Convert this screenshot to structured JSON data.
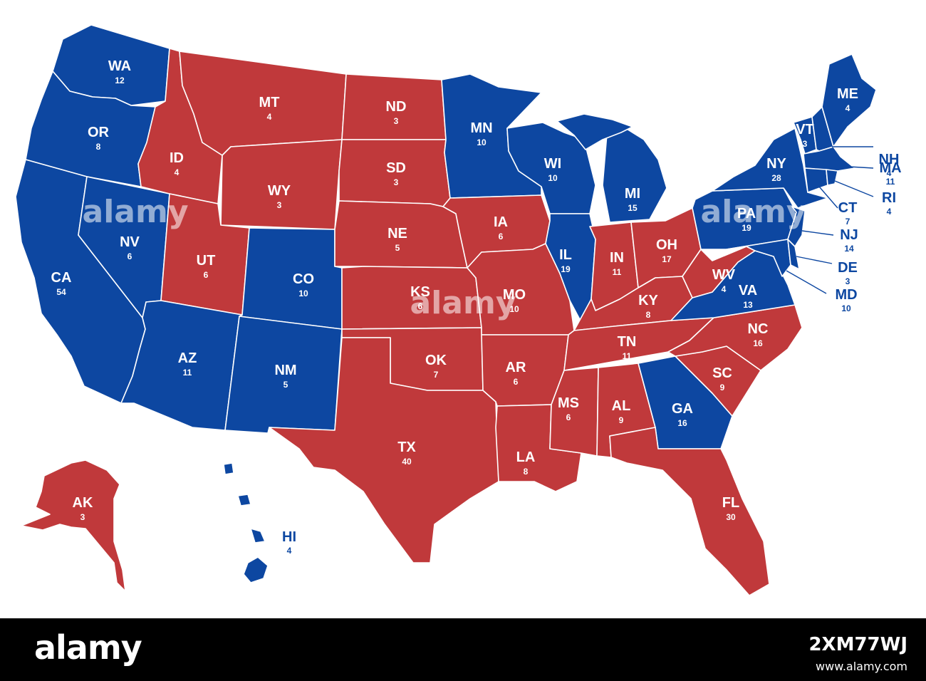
{
  "colors": {
    "blue": "#0d47a1",
    "red": "#c0393b",
    "border": "#ffffff",
    "footer_bg": "#000000"
  },
  "states": {
    "WA": {
      "abbr": "WA",
      "votes": "12",
      "party": "blue"
    },
    "OR": {
      "abbr": "OR",
      "votes": "8",
      "party": "blue"
    },
    "CA": {
      "abbr": "CA",
      "votes": "54",
      "party": "blue"
    },
    "NV": {
      "abbr": "NV",
      "votes": "6",
      "party": "blue"
    },
    "ID": {
      "abbr": "ID",
      "votes": "4",
      "party": "red"
    },
    "MT": {
      "abbr": "MT",
      "votes": "4",
      "party": "red"
    },
    "WY": {
      "abbr": "WY",
      "votes": "3",
      "party": "red"
    },
    "UT": {
      "abbr": "UT",
      "votes": "6",
      "party": "red"
    },
    "CO": {
      "abbr": "CO",
      "votes": "10",
      "party": "blue"
    },
    "AZ": {
      "abbr": "AZ",
      "votes": "11",
      "party": "blue"
    },
    "NM": {
      "abbr": "NM",
      "votes": "5",
      "party": "blue"
    },
    "ND": {
      "abbr": "ND",
      "votes": "3",
      "party": "red"
    },
    "SD": {
      "abbr": "SD",
      "votes": "3",
      "party": "red"
    },
    "NE": {
      "abbr": "NE",
      "votes": "5",
      "party": "red"
    },
    "KS": {
      "abbr": "KS",
      "votes": "6",
      "party": "red"
    },
    "OK": {
      "abbr": "OK",
      "votes": "7",
      "party": "red"
    },
    "TX": {
      "abbr": "TX",
      "votes": "40",
      "party": "red"
    },
    "MN": {
      "abbr": "MN",
      "votes": "10",
      "party": "blue"
    },
    "IA": {
      "abbr": "IA",
      "votes": "6",
      "party": "red"
    },
    "MO": {
      "abbr": "MO",
      "votes": "10",
      "party": "red"
    },
    "AR": {
      "abbr": "AR",
      "votes": "6",
      "party": "red"
    },
    "LA": {
      "abbr": "LA",
      "votes": "8",
      "party": "red"
    },
    "WI": {
      "abbr": "WI",
      "votes": "10",
      "party": "blue"
    },
    "IL": {
      "abbr": "IL",
      "votes": "19",
      "party": "blue"
    },
    "MI": {
      "abbr": "MI",
      "votes": "15",
      "party": "blue"
    },
    "IN": {
      "abbr": "IN",
      "votes": "11",
      "party": "red"
    },
    "OH": {
      "abbr": "OH",
      "votes": "17",
      "party": "red"
    },
    "KY": {
      "abbr": "KY",
      "votes": "8",
      "party": "red"
    },
    "TN": {
      "abbr": "TN",
      "votes": "11",
      "party": "red"
    },
    "MS": {
      "abbr": "MS",
      "votes": "6",
      "party": "red"
    },
    "AL": {
      "abbr": "AL",
      "votes": "9",
      "party": "red"
    },
    "GA": {
      "abbr": "GA",
      "votes": "16",
      "party": "blue"
    },
    "FL": {
      "abbr": "FL",
      "votes": "30",
      "party": "red"
    },
    "SC": {
      "abbr": "SC",
      "votes": "9",
      "party": "red"
    },
    "NC": {
      "abbr": "NC",
      "votes": "16",
      "party": "red"
    },
    "VA": {
      "abbr": "VA",
      "votes": "13",
      "party": "blue"
    },
    "WV": {
      "abbr": "WV",
      "votes": "4",
      "party": "red"
    },
    "PA": {
      "abbr": "PA",
      "votes": "19",
      "party": "blue"
    },
    "NY": {
      "abbr": "NY",
      "votes": "28",
      "party": "blue"
    },
    "VT": {
      "abbr": "VT",
      "votes": "3",
      "party": "blue"
    },
    "NH": {
      "abbr": "NH",
      "votes": "4",
      "party": "blue"
    },
    "ME": {
      "abbr": "ME",
      "votes": "4",
      "party": "blue"
    },
    "MA": {
      "abbr": "MA",
      "votes": "11",
      "party": "blue"
    },
    "RI": {
      "abbr": "RI",
      "votes": "4",
      "party": "blue"
    },
    "CT": {
      "abbr": "CT",
      "votes": "7",
      "party": "blue"
    },
    "NJ": {
      "abbr": "NJ",
      "votes": "14",
      "party": "blue"
    },
    "DE": {
      "abbr": "DE",
      "votes": "3",
      "party": "blue"
    },
    "MD": {
      "abbr": "MD",
      "votes": "10",
      "party": "blue"
    },
    "AK": {
      "abbr": "AK",
      "votes": "3",
      "party": "red"
    },
    "HI": {
      "abbr": "HI",
      "votes": "4",
      "party": "blue"
    }
  },
  "watermark": {
    "text": "alamy"
  },
  "footer": {
    "brand": "alamy",
    "image_id": "2XM77WJ",
    "url": "www.alamy.com"
  }
}
